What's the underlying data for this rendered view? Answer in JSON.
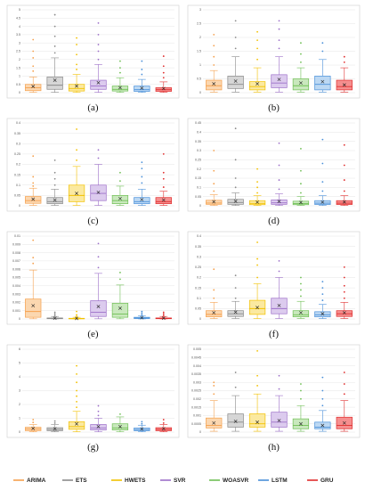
{
  "series_styles": [
    {
      "name": "ARIMA",
      "color": "#f5a04d",
      "fill": "#fbd7b0"
    },
    {
      "name": "ETS",
      "color": "#8a8a8a",
      "fill": "#d6d6d6"
    },
    {
      "name": "HWETS",
      "color": "#f2c100",
      "fill": "#fbe9a0"
    },
    {
      "name": "SVR",
      "color": "#9c6fc8",
      "fill": "#dccbee"
    },
    {
      "name": "WOASVR",
      "color": "#6fbf55",
      "fill": "#c9e8bd"
    },
    {
      "name": "LSTM",
      "color": "#4a90d9",
      "fill": "#bcd8f3"
    },
    {
      "name": "GRU",
      "color": "#e02d2d",
      "fill": "#f58f8f"
    }
  ],
  "legend": {
    "position": "bottom",
    "entries": [
      "ARIMA",
      "ETS",
      "HWETS",
      "SVR",
      "WOASVR",
      "LSTM",
      "GRU"
    ]
  },
  "chart_data": [
    {
      "type": "box",
      "caption": "(a)",
      "categories": [
        "ARIMA",
        "ETS",
        "HWETS",
        "SVR",
        "WOASVR",
        "LSTM",
        "GRU"
      ],
      "ylim": [
        0,
        5
      ],
      "yticks": [
        "0",
        "0.5",
        "1",
        "1.5",
        "2",
        "2.5",
        "3",
        "3.5",
        "4",
        "4.5",
        "5"
      ],
      "grid": true,
      "boxes": [
        {
          "min": 0.02,
          "q1": 0.12,
          "median": 0.3,
          "q3": 0.5,
          "max": 0.95,
          "mean": 0.38,
          "outliers": [
            1.3,
            1.6,
            2.1,
            2.5,
            3.2
          ]
        },
        {
          "min": 0.02,
          "q1": 0.2,
          "median": 0.45,
          "q3": 0.95,
          "max": 2.1,
          "mean": 0.75,
          "outliers": [
            2.4,
            2.8,
            3.4,
            4.0,
            4.7
          ]
        },
        {
          "min": 0.02,
          "q1": 0.1,
          "median": 0.25,
          "q3": 0.5,
          "max": 1.1,
          "mean": 0.4,
          "outliers": [
            1.4,
            1.7,
            2.3,
            2.9,
            3.3
          ]
        },
        {
          "min": 0.02,
          "q1": 0.2,
          "median": 0.4,
          "q3": 0.75,
          "max": 1.7,
          "mean": 0.6,
          "outliers": [
            2.0,
            2.5,
            2.9,
            3.5,
            4.2
          ]
        },
        {
          "min": 0.02,
          "q1": 0.1,
          "median": 0.2,
          "q3": 0.4,
          "max": 0.9,
          "mean": 0.3,
          "outliers": [
            1.2,
            1.5,
            1.9
          ]
        },
        {
          "min": 0.02,
          "q1": 0.08,
          "median": 0.18,
          "q3": 0.4,
          "max": 0.8,
          "mean": 0.28,
          "outliers": [
            1.1,
            1.4,
            1.9
          ]
        },
        {
          "min": 0.02,
          "q1": 0.08,
          "median": 0.18,
          "q3": 0.3,
          "max": 0.65,
          "mean": 0.25,
          "outliers": [
            0.9,
            1.2,
            1.6,
            2.2
          ]
        }
      ]
    },
    {
      "type": "box",
      "caption": "(b)",
      "categories": [
        "ARIMA",
        "ETS",
        "HWETS",
        "SVR",
        "WOASVR",
        "LSTM",
        "GRU"
      ],
      "ylim": [
        0,
        3
      ],
      "yticks": [
        "0",
        "0.5",
        "1",
        "1.5",
        "2",
        "2.5",
        "3"
      ],
      "grid": true,
      "boxes": [
        {
          "min": 0.02,
          "q1": 0.1,
          "median": 0.25,
          "q3": 0.45,
          "max": 0.8,
          "mean": 0.32,
          "outliers": [
            1.0,
            1.3,
            1.7,
            2.1
          ]
        },
        {
          "min": 0.02,
          "q1": 0.15,
          "median": 0.3,
          "q3": 0.6,
          "max": 1.3,
          "mean": 0.42,
          "outliers": [
            1.6,
            2.0,
            2.6
          ]
        },
        {
          "min": 0.02,
          "q1": 0.1,
          "median": 0.22,
          "q3": 0.4,
          "max": 0.9,
          "mean": 0.32,
          "outliers": [
            1.2,
            1.6,
            1.9,
            2.2
          ]
        },
        {
          "min": 0.02,
          "q1": 0.18,
          "median": 0.35,
          "q3": 0.65,
          "max": 1.3,
          "mean": 0.48,
          "outliers": [
            1.6,
            1.9,
            2.3,
            2.6
          ]
        },
        {
          "min": 0.02,
          "q1": 0.1,
          "median": 0.25,
          "q3": 0.5,
          "max": 0.9,
          "mean": 0.35,
          "outliers": [
            1.1,
            1.4,
            1.8
          ]
        },
        {
          "min": 0.02,
          "q1": 0.1,
          "median": 0.3,
          "q3": 0.6,
          "max": 1.2,
          "mean": 0.4,
          "outliers": [
            1.5,
            1.8
          ]
        },
        {
          "min": 0.02,
          "q1": 0.1,
          "median": 0.22,
          "q3": 0.45,
          "max": 0.9,
          "mean": 0.28,
          "outliers": [
            1.1,
            1.3
          ]
        }
      ]
    },
    {
      "type": "box",
      "caption": "(c)",
      "categories": [
        "ARIMA",
        "ETS",
        "HWETS",
        "SVR",
        "WOASVR",
        "LSTM",
        "GRU"
      ],
      "ylim": [
        0,
        0.4
      ],
      "yticks": [
        "0",
        "0.05",
        "0.1",
        "0.15",
        "0.2",
        "0.25",
        "0.3",
        "0.35",
        "0.4"
      ],
      "grid": true,
      "boxes": [
        {
          "min": 0.002,
          "q1": 0.012,
          "median": 0.025,
          "q3": 0.045,
          "max": 0.085,
          "mean": 0.032,
          "outliers": [
            0.095,
            0.11,
            0.14,
            0.24
          ]
        },
        {
          "min": 0.002,
          "q1": 0.01,
          "median": 0.02,
          "q3": 0.04,
          "max": 0.08,
          "mean": 0.028,
          "outliers": [
            0.1,
            0.13,
            0.16,
            0.22
          ]
        },
        {
          "min": 0.002,
          "q1": 0.02,
          "median": 0.05,
          "q3": 0.1,
          "max": 0.19,
          "mean": 0.06,
          "outliers": [
            0.22,
            0.27,
            0.37
          ]
        },
        {
          "min": 0.002,
          "q1": 0.025,
          "median": 0.06,
          "q3": 0.1,
          "max": 0.2,
          "mean": 0.065,
          "outliers": [
            0.23,
            0.27
          ]
        },
        {
          "min": 0.002,
          "q1": 0.01,
          "median": 0.025,
          "q3": 0.05,
          "max": 0.095,
          "mean": 0.035,
          "outliers": [
            0.12,
            0.16
          ]
        },
        {
          "min": 0.002,
          "q1": 0.01,
          "median": 0.02,
          "q3": 0.04,
          "max": 0.08,
          "mean": 0.03,
          "outliers": [
            0.11,
            0.14,
            0.18,
            0.21
          ]
        },
        {
          "min": 0.002,
          "q1": 0.01,
          "median": 0.02,
          "q3": 0.04,
          "max": 0.07,
          "mean": 0.028,
          "outliers": [
            0.09,
            0.13,
            0.16,
            0.25
          ]
        }
      ]
    },
    {
      "type": "box",
      "caption": "(d)",
      "categories": [
        "ARIMA",
        "ETS",
        "HWETS",
        "SVR",
        "WOASVR",
        "LSTM",
        "GRU"
      ],
      "ylim": [
        0,
        0.45
      ],
      "yticks": [
        "0",
        "0.05",
        "0.1",
        "0.15",
        "0.2",
        "0.25",
        "0.3",
        "0.35",
        "0.4",
        "0.45"
      ],
      "grid": true,
      "boxes": [
        {
          "min": 0.002,
          "q1": 0.008,
          "median": 0.015,
          "q3": 0.03,
          "max": 0.06,
          "mean": 0.022,
          "outliers": [
            0.08,
            0.12,
            0.19,
            0.3
          ]
        },
        {
          "min": 0.002,
          "q1": 0.008,
          "median": 0.018,
          "q3": 0.035,
          "max": 0.07,
          "mean": 0.025,
          "outliers": [
            0.1,
            0.15,
            0.25,
            0.42
          ]
        },
        {
          "min": 0.002,
          "q1": 0.006,
          "median": 0.013,
          "q3": 0.028,
          "max": 0.055,
          "mean": 0.02,
          "outliers": [
            0.07,
            0.1,
            0.13,
            0.2
          ]
        },
        {
          "min": 0.002,
          "q1": 0.008,
          "median": 0.016,
          "q3": 0.032,
          "max": 0.065,
          "mean": 0.024,
          "outliers": [
            0.09,
            0.14,
            0.22,
            0.34
          ]
        },
        {
          "min": 0.002,
          "q1": 0.006,
          "median": 0.012,
          "q3": 0.025,
          "max": 0.05,
          "mean": 0.018,
          "outliers": [
            0.07,
            0.12,
            0.19,
            0.31
          ]
        },
        {
          "min": 0.002,
          "q1": 0.007,
          "median": 0.014,
          "q3": 0.028,
          "max": 0.055,
          "mean": 0.02,
          "outliers": [
            0.08,
            0.13,
            0.23,
            0.36
          ]
        },
        {
          "min": 0.002,
          "q1": 0.007,
          "median": 0.014,
          "q3": 0.028,
          "max": 0.055,
          "mean": 0.021,
          "outliers": [
            0.08,
            0.14,
            0.22,
            0.33
          ]
        }
      ]
    },
    {
      "type": "box",
      "caption": "(e)",
      "categories": [
        "ARIMA",
        "ETS",
        "HWETS",
        "SVR",
        "WOASVR",
        "LSTM",
        "GRU"
      ],
      "ylim": [
        0,
        0.01
      ],
      "yticks": [
        "0",
        "0.001",
        "0.002",
        "0.003",
        "0.004",
        "0.005",
        "0.006",
        "0.007",
        "0.008",
        "0.009",
        "0.01"
      ],
      "grid": true,
      "boxes": [
        {
          "min": 2e-05,
          "q1": 0.0002,
          "median": 0.0009,
          "q3": 0.0024,
          "max": 0.0059,
          "mean": 0.0016,
          "outliers": [
            0.0067,
            0.0074,
            0.0095
          ]
        },
        {
          "min": 1e-05,
          "q1": 3e-05,
          "median": 6e-05,
          "q3": 0.00012,
          "max": 0.0003,
          "mean": 8e-05,
          "outliers": [
            0.0004,
            0.0006,
            0.0008
          ]
        },
        {
          "min": 1e-05,
          "q1": 2e-05,
          "median": 4e-05,
          "q3": 8e-05,
          "max": 0.0002,
          "mean": 6e-05,
          "outliers": [
            0.0003,
            0.0005,
            0.0009
          ]
        },
        {
          "min": 2e-05,
          "q1": 0.0003,
          "median": 0.0008,
          "q3": 0.0022,
          "max": 0.0055,
          "mean": 0.0015,
          "outliers": [
            0.0062,
            0.0075,
            0.0091
          ]
        },
        {
          "min": 2e-05,
          "q1": 0.0002,
          "median": 0.0006,
          "q3": 0.0019,
          "max": 0.0041,
          "mean": 0.0013,
          "outliers": [
            0.0048,
            0.0056
          ]
        },
        {
          "min": 1e-05,
          "q1": 5e-05,
          "median": 0.0001,
          "q3": 0.0002,
          "max": 0.0004,
          "mean": 0.00015,
          "outliers": [
            0.0005,
            0.0007,
            0.0009
          ]
        },
        {
          "min": 1e-05,
          "q1": 3e-05,
          "median": 6e-05,
          "q3": 0.00012,
          "max": 0.0003,
          "mean": 9e-05,
          "outliers": [
            0.0004,
            0.0006,
            0.0008
          ]
        }
      ]
    },
    {
      "type": "box",
      "caption": "(f)",
      "categories": [
        "ARIMA",
        "ETS",
        "HWETS",
        "SVR",
        "WOASVR",
        "LSTM",
        "GRU"
      ],
      "ylim": [
        0,
        0.4
      ],
      "yticks": [
        "0",
        "0.05",
        "0.1",
        "0.15",
        "0.2",
        "0.25",
        "0.3",
        "0.35",
        "0.4"
      ],
      "grid": true,
      "boxes": [
        {
          "min": 0.002,
          "q1": 0.01,
          "median": 0.022,
          "q3": 0.04,
          "max": 0.08,
          "mean": 0.03,
          "outliers": [
            0.1,
            0.14,
            0.24
          ]
        },
        {
          "min": 0.002,
          "q1": 0.012,
          "median": 0.025,
          "q3": 0.04,
          "max": 0.085,
          "mean": 0.033,
          "outliers": [
            0.1,
            0.15,
            0.21
          ]
        },
        {
          "min": 0.002,
          "q1": 0.022,
          "median": 0.05,
          "q3": 0.09,
          "max": 0.17,
          "mean": 0.055,
          "outliers": [
            0.2,
            0.26,
            0.29,
            0.37
          ]
        },
        {
          "min": 0.002,
          "q1": 0.025,
          "median": 0.05,
          "q3": 0.1,
          "max": 0.2,
          "mean": 0.065,
          "outliers": [
            0.23,
            0.28
          ]
        },
        {
          "min": 0.002,
          "q1": 0.01,
          "median": 0.02,
          "q3": 0.04,
          "max": 0.085,
          "mean": 0.03,
          "outliers": [
            0.11,
            0.14,
            0.17,
            0.2
          ]
        },
        {
          "min": 0.002,
          "q1": 0.01,
          "median": 0.02,
          "q3": 0.035,
          "max": 0.07,
          "mean": 0.025,
          "outliers": [
            0.09,
            0.12,
            0.15,
            0.18
          ]
        },
        {
          "min": 0.002,
          "q1": 0.012,
          "median": 0.025,
          "q3": 0.04,
          "max": 0.08,
          "mean": 0.03,
          "outliers": [
            0.1,
            0.13,
            0.16,
            0.2,
            0.25
          ]
        }
      ]
    },
    {
      "type": "box",
      "caption": "(g)",
      "categories": [
        "ARIMA",
        "ETS",
        "HWETS",
        "SVR",
        "WOASVR",
        "LSTM",
        "GRU"
      ],
      "ylim": [
        0,
        6
      ],
      "yticks": [
        "0",
        "1",
        "2",
        "3",
        "4",
        "5",
        "6"
      ],
      "grid": true,
      "boxes": [
        {
          "min": 0.02,
          "q1": 0.1,
          "median": 0.22,
          "q3": 0.35,
          "max": 0.55,
          "mean": 0.26,
          "outliers": [
            0.7,
            0.9
          ]
        },
        {
          "min": 0.02,
          "q1": 0.1,
          "median": 0.2,
          "q3": 0.32,
          "max": 0.55,
          "mean": 0.24,
          "outliers": [
            0.65,
            0.8
          ]
        },
        {
          "min": 0.02,
          "q1": 0.2,
          "median": 0.4,
          "q3": 0.75,
          "max": 1.5,
          "mean": 0.6,
          "outliers": [
            1.8,
            2.2,
            2.6,
            3.0,
            3.6,
            4.2,
            4.8
          ]
        },
        {
          "min": 0.02,
          "q1": 0.15,
          "median": 0.3,
          "q3": 0.55,
          "max": 1.0,
          "mean": 0.4,
          "outliers": [
            1.2,
            1.5,
            1.9
          ]
        },
        {
          "min": 0.02,
          "q1": 0.15,
          "median": 0.3,
          "q3": 0.6,
          "max": 1.1,
          "mean": 0.4,
          "outliers": [
            1.3
          ]
        },
        {
          "min": 0.02,
          "q1": 0.1,
          "median": 0.18,
          "q3": 0.3,
          "max": 0.5,
          "mean": 0.22,
          "outliers": [
            0.6,
            0.75
          ]
        },
        {
          "min": 0.02,
          "q1": 0.1,
          "median": 0.2,
          "q3": 0.32,
          "max": 0.55,
          "mean": 0.24,
          "outliers": [
            0.65,
            0.9
          ]
        }
      ]
    },
    {
      "type": "box",
      "caption": "(h)",
      "categories": [
        "ARIMA",
        "ETS",
        "HWETS",
        "SVR",
        "WOASVR",
        "LSTM",
        "GRU"
      ],
      "ylim": [
        0,
        0.005
      ],
      "yticks": [
        "0",
        "0.0005",
        "0.001",
        "0.0015",
        "0.002",
        "0.0025",
        "0.003",
        "0.0035",
        "0.004",
        "0.0045",
        "0.005"
      ],
      "grid": true,
      "boxes": [
        {
          "min": 5e-05,
          "q1": 0.00025,
          "median": 0.0004,
          "q3": 0.00085,
          "max": 0.0019,
          "mean": 0.00055,
          "outliers": [
            0.0023,
            0.0028,
            0.003
          ]
        },
        {
          "min": 5e-05,
          "q1": 0.0003,
          "median": 0.0006,
          "q3": 0.0011,
          "max": 0.0022,
          "mean": 0.00065,
          "outliers": [
            0.0027,
            0.0036
          ]
        },
        {
          "min": 5e-05,
          "q1": 0.0003,
          "median": 0.0005,
          "q3": 0.0011,
          "max": 0.0023,
          "mean": 0.0006,
          "outliers": [
            0.0028,
            0.0034,
            0.0049
          ]
        },
        {
          "min": 5e-05,
          "q1": 0.0003,
          "median": 0.0006,
          "q3": 0.0012,
          "max": 0.0022,
          "mean": 0.0007,
          "outliers": [
            0.0026,
            0.0034
          ]
        },
        {
          "min": 5e-05,
          "q1": 0.0002,
          "median": 0.0004,
          "q3": 0.0008,
          "max": 0.0016,
          "mean": 0.0005,
          "outliers": [
            0.002,
            0.0025,
            0.0029
          ]
        },
        {
          "min": 5e-05,
          "q1": 0.0002,
          "median": 0.0003,
          "q3": 0.0006,
          "max": 0.0013,
          "mean": 0.0004,
          "outliers": [
            0.0016,
            0.002,
            0.0025,
            0.0033
          ]
        },
        {
          "min": 5e-05,
          "q1": 0.0002,
          "median": 0.0004,
          "q3": 0.0009,
          "max": 0.0019,
          "mean": 0.00055,
          "outliers": [
            0.0023,
            0.0029,
            0.0036
          ]
        }
      ]
    }
  ]
}
